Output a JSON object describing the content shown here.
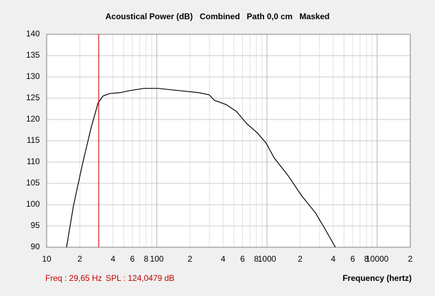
{
  "chart_data": {
    "type": "line",
    "title": "Acoustical Power (dB)   Combined   Path 0,0 cm   Masked",
    "x_label": "Frequency (hertz)",
    "log_x": true,
    "grid": true,
    "xlim": [
      10,
      20000
    ],
    "ylim": [
      90,
      140
    ],
    "yticks": [
      90,
      95,
      100,
      105,
      110,
      115,
      120,
      125,
      130,
      135,
      140
    ],
    "xticks": [
      10,
      {
        "value": 20,
        "label": "2"
      },
      {
        "value": 40,
        "label": "4"
      },
      {
        "value": 60,
        "label": "6"
      },
      {
        "value": 80,
        "label": "8"
      },
      100,
      {
        "value": 200,
        "label": "2"
      },
      {
        "value": 400,
        "label": "4"
      },
      {
        "value": 600,
        "label": "6"
      },
      {
        "value": 800,
        "label": "8"
      },
      1000,
      {
        "value": 2000,
        "label": "2"
      },
      {
        "value": 4000,
        "label": "4"
      },
      {
        "value": 6000,
        "label": "6"
      },
      {
        "value": 8000,
        "label": "8"
      },
      10000,
      {
        "value": 20000,
        "label": "2"
      }
    ],
    "xminorticks": [
      30,
      50,
      70,
      90,
      300,
      500,
      700,
      900,
      3000,
      5000,
      7000,
      9000
    ],
    "cursor": {
      "x": 29.65,
      "color": "#e00000",
      "freq_label": "Freq : 29,65 Hz",
      "spl_label": "SPL : 124,0479 dB"
    },
    "series": [
      {
        "color": "#000000",
        "x": [
          15.15,
          17.5,
          21.07,
          25.4,
          29.3,
          32.4,
          37.4,
          46.3,
          57.4,
          76.5,
          101.9,
          156.6,
          240,
          298,
          334,
          426,
          528,
          657,
          813,
          980,
          1160,
          1547,
          2063,
          2751,
          3414,
          4180
        ],
        "values": [
          90,
          99.7,
          109.4,
          118.2,
          123.9,
          125.5,
          126.1,
          126.3,
          126.8,
          127.3,
          127.3,
          126.8,
          126.3,
          125.8,
          124.5,
          123.5,
          121.9,
          119.0,
          116.9,
          114.5,
          111,
          106.9,
          102.1,
          98.1,
          94.0,
          90
        ]
      }
    ]
  }
}
